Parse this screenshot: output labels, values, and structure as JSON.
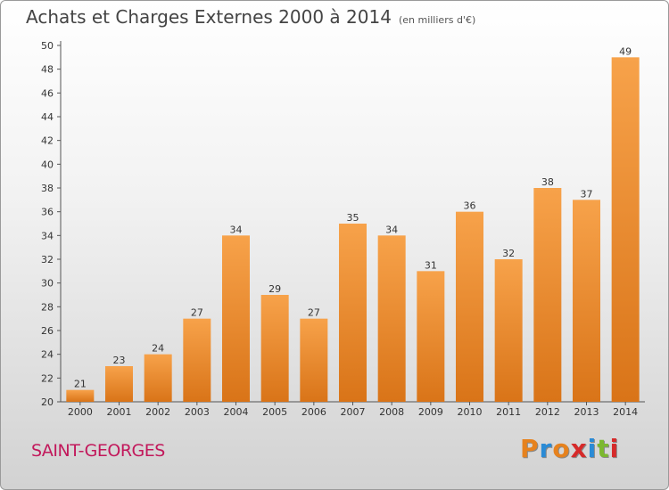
{
  "header": {
    "title": "Achats et Charges Externes 2000 à 2014",
    "subtitle": "(en milliers d'€)"
  },
  "footer": {
    "location": "SAINT-GEORGES",
    "logo": [
      "P",
      "r",
      "o",
      "x",
      "i",
      "t",
      "i"
    ],
    "logo_colors": [
      "#e6821e",
      "#2a8bd6",
      "#e6821e",
      "#d62a2a",
      "#2a8bd6",
      "#7cb82f",
      "#d62a2a"
    ]
  },
  "chart_data": {
    "type": "bar",
    "categories": [
      "2000",
      "2001",
      "2002",
      "2003",
      "2004",
      "2005",
      "2006",
      "2007",
      "2008",
      "2009",
      "2010",
      "2011",
      "2012",
      "2013",
      "2014"
    ],
    "values": [
      21,
      23,
      24,
      27,
      34,
      29,
      27,
      35,
      34,
      31,
      36,
      32,
      38,
      37,
      49
    ],
    "ylim": [
      20,
      50
    ],
    "yticks": [
      20,
      22,
      24,
      26,
      28,
      30,
      32,
      34,
      36,
      38,
      40,
      42,
      44,
      46,
      48,
      50
    ],
    "grid": false,
    "bar_color_top": "#f7a24a",
    "bar_color_bottom": "#d97418"
  }
}
